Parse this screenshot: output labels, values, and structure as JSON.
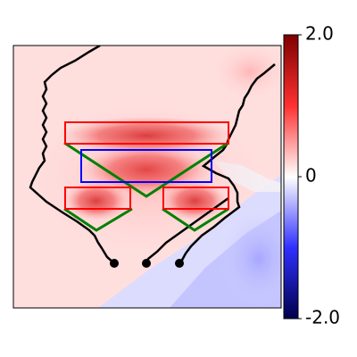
{
  "chart_data": {
    "type": "heatmap",
    "title": "",
    "xlabel": "",
    "ylabel": "",
    "axis_ticks_visible": false,
    "grid": false,
    "colormap": "seismic",
    "colorbar": {
      "position": "right",
      "range": [
        -2.0,
        2.0
      ],
      "ticks": [
        2.0,
        0,
        -2.0
      ],
      "tick_labels": [
        "2.0",
        "0",
        "-2.0"
      ]
    },
    "colors": {
      "box_outline": "#ff0000",
      "center_box_outline": "#0000ff",
      "chevron": "#008000",
      "boundary_curve": "#000000",
      "marker": "#000000"
    }
  }
}
